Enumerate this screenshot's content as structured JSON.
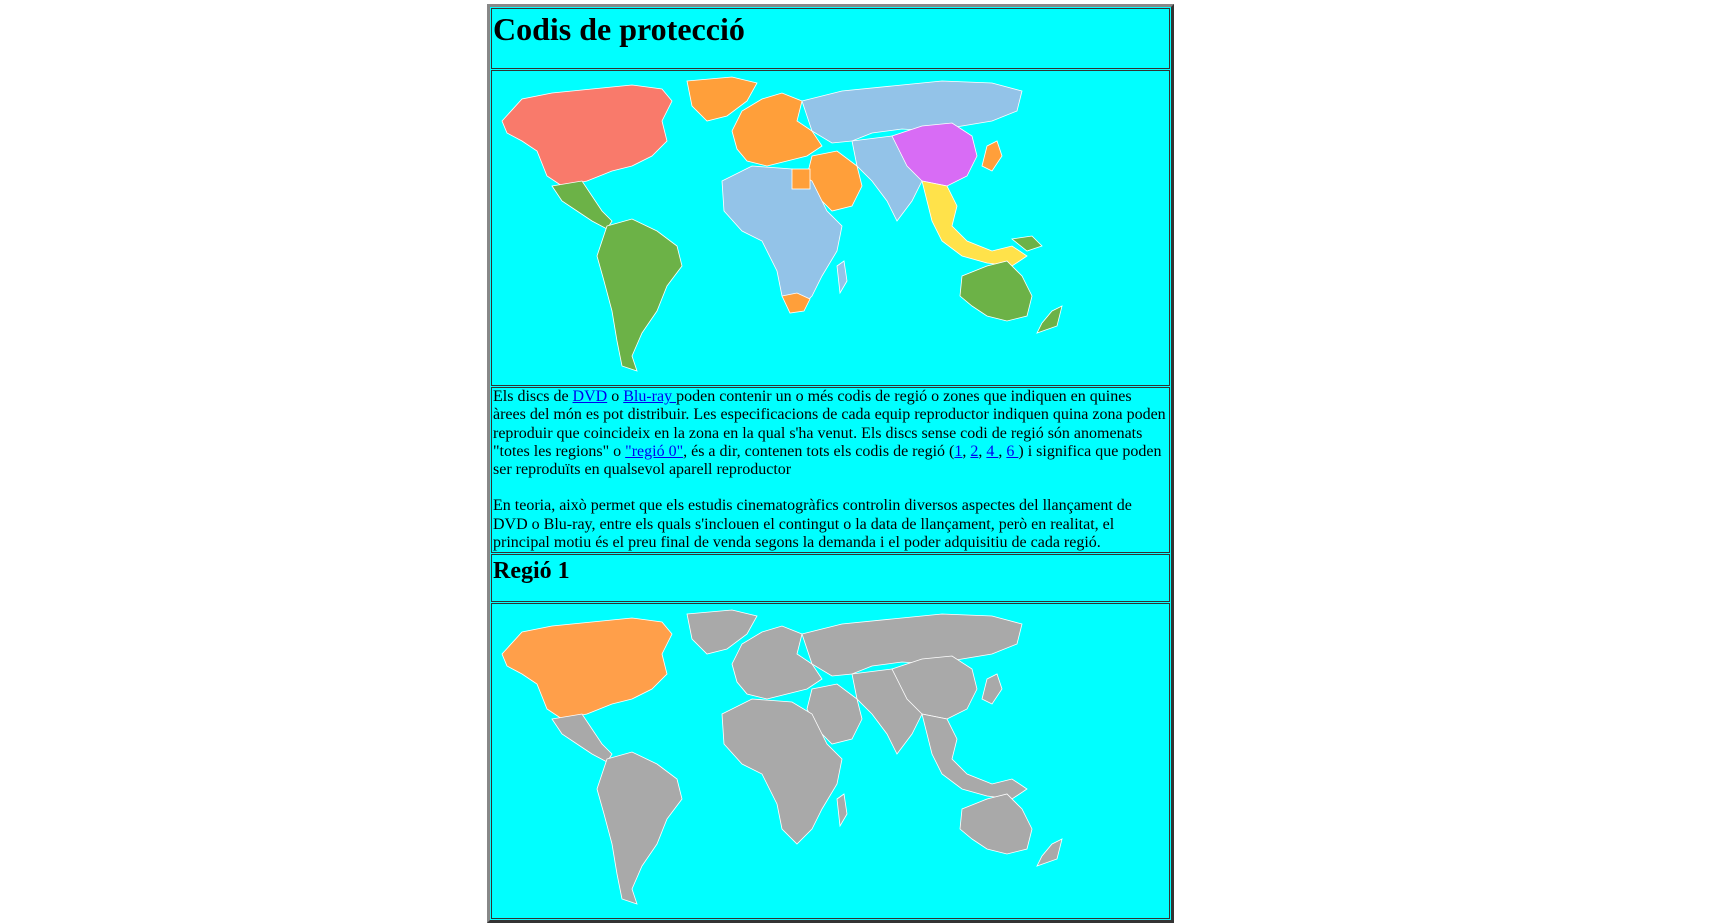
{
  "page": {
    "title": "Codis de protecció",
    "background": "#00ffff"
  },
  "world_map": {
    "colors": {
      "region_1": "#f97a6b",
      "region_2": "#ff9f3a",
      "region_3": "#ffe24a",
      "region_4": "#6cb247",
      "region_5": "#93c3e8",
      "region_6": "#d86cf5",
      "highlight": "#ff9f4a",
      "inactive": "#a9a9a9",
      "border": "#ffffff"
    }
  },
  "intro": {
    "p1_a": "Els discs de ",
    "link_dvd": "DVD",
    "p1_b": " o ",
    "link_bluray": "Blu-ray ",
    "p1_c": "poden contenir un o més codis de regió o zones que indiquen en quines àrees del món es pot distribuir. Les especificacions de cada equip reproductor indiquen quina zona poden reproduir que coincideix en la zona en la qual s'ha venut. Els discs sense codi de regió són anomenats \"totes les regions\" o ",
    "link_region0": "\"regió 0\"",
    "p1_d": ", és a dir, contenen tots els codis de regió (",
    "link_1": "1",
    "sep_1": ", ",
    "link_2": "2",
    "sep_2": ", ",
    "link_4": "4 ",
    "sep_3": ", ",
    "link_6": "6 ",
    "p1_e": ") i significa que poden ser reproduïts en qualsevol aparell reproductor",
    "p2": "En teoria, això permet que els estudis cinematogràfics controlin diversos aspectes del llançament de DVD o Blu-ray, entre els quals s'inclouen el contingut o la data de llançament, però en realitat, el principal motiu és el preu final de venda segons la demanda i el poder adquisitiu de cada regió."
  },
  "region1": {
    "title": "Regió 1"
  }
}
